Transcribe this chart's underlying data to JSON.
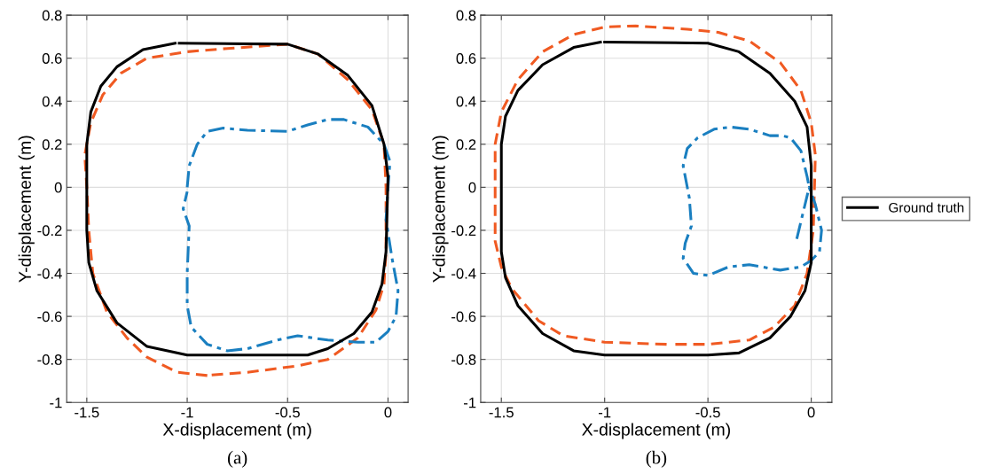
{
  "chart_data": [
    {
      "type": "line",
      "xlabel": "X-displacement (m)",
      "ylabel": "Y-displacement (m)",
      "annotations": [
        "(a)"
      ],
      "xlim": [
        -1.6,
        0.1
      ],
      "ylim": [
        -1,
        0.8
      ],
      "xticks": [
        -1.5,
        -1,
        -0.5,
        0
      ],
      "yticks": [
        -1,
        -0.8,
        -0.6,
        -0.4,
        -0.2,
        0,
        0.2,
        0.4,
        0.6,
        0.8
      ],
      "grid": true,
      "legend": false,
      "series": [
        {
          "color": "#000000",
          "line_style": "solid",
          "x": [
            -1.04,
            -0.5,
            -0.35,
            -0.2,
            -0.08,
            -0.02,
            0,
            -0.01,
            -0.03,
            -0.08,
            -0.17,
            -0.3,
            -0.4,
            -1.0,
            -1.2,
            -1.35,
            -1.45,
            -1.49,
            -1.5,
            -1.5,
            -1.48,
            -1.43,
            -1.35,
            -1.22,
            -1.06
          ],
          "values": [
            0.67,
            0.665,
            0.62,
            0.52,
            0.38,
            0.2,
            0.05,
            -0.3,
            -0.45,
            -0.58,
            -0.68,
            -0.75,
            -0.78,
            -0.78,
            -0.74,
            -0.63,
            -0.48,
            -0.35,
            -0.2,
            0.2,
            0.35,
            0.47,
            0.56,
            0.64,
            0.67
          ]
        },
        {
          "color": "#f05a22",
          "line_style": "dashed",
          "x": [
            -0.9,
            -1.05,
            -1.2,
            -1.3,
            -1.4,
            -1.47,
            -1.49,
            -1.5,
            -1.51,
            -1.48,
            -1.42,
            -1.33,
            -1.2,
            -1.0,
            -0.8,
            -0.5,
            -0.35,
            -0.2,
            -0.08,
            -0.02,
            -0.01,
            -0.01,
            -0.02,
            -0.06,
            -0.15,
            -0.3,
            -0.45,
            -0.7,
            -0.88
          ],
          "values": [
            -0.875,
            -0.86,
            -0.79,
            -0.7,
            -0.58,
            -0.4,
            -0.2,
            0.0,
            0.15,
            0.3,
            0.43,
            0.53,
            0.6,
            0.63,
            0.645,
            0.665,
            0.62,
            0.5,
            0.36,
            0.2,
            0.0,
            -0.3,
            -0.45,
            -0.57,
            -0.7,
            -0.8,
            -0.83,
            -0.86,
            -0.873
          ]
        },
        {
          "color": "#1a7fc0",
          "line_style": "dashdot",
          "x": [
            -1.0,
            -0.99,
            -0.95,
            -0.9,
            -0.82,
            -0.7,
            -0.5,
            -0.4,
            -0.3,
            -0.22,
            -0.1,
            -0.02,
            0.01,
            0.0,
            -0.01,
            0.02,
            0.05,
            0.04,
            0.0,
            -0.06,
            -0.15,
            -0.3,
            -0.45,
            -0.55,
            -0.7,
            -0.8,
            -0.9,
            -0.98,
            -1.0,
            -1.0,
            -0.99,
            -1.02,
            -1.0
          ],
          "values": [
            0.0,
            0.1,
            0.2,
            0.26,
            0.275,
            0.265,
            0.26,
            0.29,
            0.315,
            0.315,
            0.28,
            0.2,
            0.12,
            0.0,
            -0.15,
            -0.33,
            -0.48,
            -0.6,
            -0.67,
            -0.72,
            -0.72,
            -0.71,
            -0.69,
            -0.71,
            -0.75,
            -0.76,
            -0.73,
            -0.65,
            -0.55,
            -0.4,
            -0.18,
            -0.1,
            -0.02
          ]
        }
      ]
    },
    {
      "type": "line",
      "xlabel": "X-displacement (m)",
      "ylabel": "Y-displacement (m)",
      "annotations": [
        "(b)"
      ],
      "xlim": [
        -1.6,
        0.1
      ],
      "ylim": [
        -1,
        0.8
      ],
      "xticks": [
        -1.5,
        -1,
        -0.5,
        0
      ],
      "yticks": [
        -1,
        -0.8,
        -0.6,
        -0.4,
        -0.2,
        0,
        0.2,
        0.4,
        0.6,
        0.8
      ],
      "grid": true,
      "legend": "right",
      "series": [
        {
          "name": "Ground truth",
          "color": "#000000",
          "line_style": "solid",
          "x": [
            -1.0,
            -0.5,
            -0.35,
            -0.2,
            -0.08,
            -0.02,
            0,
            0,
            -0.03,
            -0.1,
            -0.2,
            -0.35,
            -0.5,
            -1.0,
            -1.15,
            -1.3,
            -1.42,
            -1.48,
            -1.5,
            -1.5,
            -1.48,
            -1.42,
            -1.3,
            -1.15,
            -1.02
          ],
          "values": [
            0.675,
            0.67,
            0.63,
            0.53,
            0.4,
            0.28,
            0.1,
            -0.35,
            -0.48,
            -0.6,
            -0.7,
            -0.77,
            -0.78,
            -0.78,
            -0.76,
            -0.68,
            -0.55,
            -0.42,
            -0.3,
            0.2,
            0.33,
            0.45,
            0.57,
            0.65,
            0.675
          ]
        },
        {
          "color": "#f05a22",
          "line_style": "dashed",
          "x": [
            -0.7,
            -1.0,
            -1.2,
            -1.32,
            -1.45,
            -1.5,
            -1.53,
            -1.53,
            -1.53,
            -1.5,
            -1.42,
            -1.3,
            -1.15,
            -1.0,
            -0.85,
            -0.6,
            -0.45,
            -0.3,
            -0.15,
            -0.05,
            0.0,
            0.02,
            0.01,
            -0.02,
            -0.08,
            -0.18,
            -0.3,
            -0.5,
            -0.665
          ],
          "values": [
            -0.73,
            -0.72,
            -0.69,
            -0.62,
            -0.47,
            -0.37,
            -0.25,
            -0.1,
            0.2,
            0.35,
            0.5,
            0.63,
            0.71,
            0.745,
            0.75,
            0.735,
            0.72,
            0.68,
            0.58,
            0.45,
            0.3,
            0.15,
            -0.2,
            -0.4,
            -0.55,
            -0.65,
            -0.71,
            -0.73,
            -0.73
          ]
        },
        {
          "color": "#1a7fc0",
          "line_style": "dashdot",
          "x": [
            -0.07,
            -0.04,
            -0.01,
            0.02,
            0.05,
            0.04,
            0.0,
            -0.05,
            -0.15,
            -0.3,
            -0.4,
            -0.5,
            -0.57,
            -0.62,
            -0.61,
            -0.58,
            -0.59,
            -0.62,
            -0.6,
            -0.55,
            -0.47,
            -0.39,
            -0.3,
            -0.2,
            -0.14,
            -0.1,
            -0.05,
            -0.02,
            -0.01
          ],
          "values": [
            -0.24,
            -0.12,
            0.0,
            -0.08,
            -0.2,
            -0.3,
            -0.34,
            -0.37,
            -0.385,
            -0.36,
            -0.37,
            -0.41,
            -0.4,
            -0.33,
            -0.26,
            -0.18,
            -0.05,
            0.1,
            0.18,
            0.23,
            0.27,
            0.28,
            0.27,
            0.24,
            0.24,
            0.23,
            0.17,
            0.05,
            0.0
          ]
        }
      ]
    }
  ]
}
